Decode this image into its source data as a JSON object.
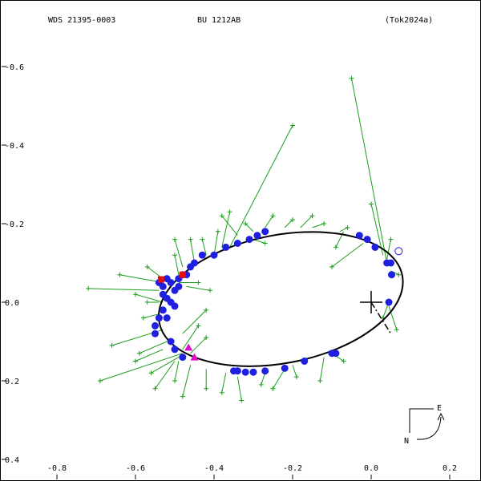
{
  "chart_data": {
    "type": "scatter",
    "header": {
      "left": "WDS 21395-0003",
      "center": "BU 1212AB",
      "right": "(Tok2024a)"
    },
    "xlim": [
      -0.9,
      0.28
    ],
    "ylim": [
      -0.4,
      0.7
    ],
    "x_ticks": [
      {
        "value": -0.8,
        "label": "-0.8"
      },
      {
        "value": -0.6,
        "label": "-0.6"
      },
      {
        "value": -0.4,
        "label": "-0.4"
      },
      {
        "value": -0.2,
        "label": "-0.2"
      },
      {
        "value": 0.0,
        "label": "0.0"
      },
      {
        "value": 0.2,
        "label": "0.2"
      }
    ],
    "y_ticks": [
      {
        "value": 0.6,
        "label": "-0.6"
      },
      {
        "value": 0.4,
        "label": "-0.4"
      },
      {
        "value": 0.2,
        "label": "-0.2"
      },
      {
        "value": 0.0,
        "label": "0.0"
      },
      {
        "value": -0.2,
        "label": "0.2"
      },
      {
        "value": -0.4,
        "label": "0.4"
      }
    ],
    "orbit": {
      "center": [
        -0.23,
        0.008
      ],
      "semi_axes": [
        0.315,
        0.163
      ],
      "rotation_deg": 11,
      "color": "#000000"
    },
    "primary": [
      0.0,
      0.0
    ],
    "periastron_line": [
      [
        0.0,
        0.0
      ],
      [
        0.05,
        -0.08
      ]
    ],
    "compass": {
      "east_label": "E",
      "north_label": "N"
    },
    "series": [
      {
        "marker": "filled-circle",
        "color": "#1f1fe0",
        "points": [
          [
            -0.54,
            0.05
          ],
          [
            -0.53,
            0.04
          ],
          [
            -0.53,
            0.02
          ],
          [
            -0.52,
            0.06
          ],
          [
            -0.52,
            0.01
          ],
          [
            -0.51,
            0.05
          ],
          [
            -0.51,
            0.0
          ],
          [
            -0.5,
            0.03
          ],
          [
            -0.5,
            -0.01
          ],
          [
            -0.49,
            0.06
          ],
          [
            -0.49,
            0.04
          ],
          [
            -0.48,
            0.07
          ],
          [
            -0.47,
            0.07
          ],
          [
            -0.53,
            -0.02
          ],
          [
            -0.52,
            -0.04
          ],
          [
            -0.54,
            -0.04
          ],
          [
            -0.55,
            -0.06
          ],
          [
            -0.55,
            -0.08
          ],
          [
            -0.51,
            -0.1
          ],
          [
            -0.5,
            -0.12
          ],
          [
            -0.48,
            -0.14
          ],
          [
            -0.46,
            0.09
          ],
          [
            -0.45,
            0.1
          ],
          [
            -0.43,
            0.12
          ],
          [
            -0.4,
            0.12
          ],
          [
            -0.37,
            0.14
          ],
          [
            -0.34,
            0.15
          ],
          [
            -0.31,
            0.16
          ],
          [
            -0.29,
            0.17
          ],
          [
            -0.27,
            0.18
          ],
          [
            -0.03,
            0.17
          ],
          [
            -0.01,
            0.16
          ],
          [
            0.01,
            0.14
          ],
          [
            0.04,
            0.1
          ],
          [
            0.05,
            0.1
          ],
          [
            0.052,
            0.07
          ],
          [
            0.045,
            0.0
          ],
          [
            -0.09,
            -0.13
          ],
          [
            -0.1,
            -0.13
          ],
          [
            -0.17,
            -0.15
          ],
          [
            -0.22,
            -0.168
          ],
          [
            -0.27,
            -0.175
          ],
          [
            -0.3,
            -0.178
          ],
          [
            -0.32,
            -0.178
          ],
          [
            -0.34,
            -0.175
          ],
          [
            -0.35,
            -0.175
          ]
        ]
      },
      {
        "marker": "open-circle",
        "color": "#1f1fe0",
        "points": [
          [
            0.07,
            0.13
          ]
        ]
      },
      {
        "marker": "square",
        "color": "#e01010",
        "points": [
          [
            -0.535,
            0.058
          ],
          [
            -0.48,
            0.07
          ]
        ]
      },
      {
        "marker": "triangle",
        "color": "#e010c8",
        "points": [
          [
            -0.465,
            -0.115
          ],
          [
            -0.45,
            -0.14
          ]
        ]
      },
      {
        "marker": "plus-with-line",
        "color": "#1a9e1a",
        "points": [
          [
            -0.72,
            0.035,
            -0.54,
            0.03
          ],
          [
            -0.64,
            0.07,
            -0.53,
            0.05
          ],
          [
            -0.6,
            0.02,
            -0.53,
            0.0
          ],
          [
            -0.66,
            -0.11,
            -0.53,
            -0.07
          ],
          [
            -0.69,
            -0.2,
            -0.48,
            -0.13
          ],
          [
            -0.59,
            -0.13,
            -0.52,
            -0.1
          ],
          [
            -0.56,
            -0.18,
            -0.49,
            -0.14
          ],
          [
            -0.48,
            -0.24,
            -0.46,
            -0.16
          ],
          [
            -0.42,
            -0.22,
            -0.42,
            -0.17
          ],
          [
            -0.38,
            -0.23,
            -0.37,
            -0.18
          ],
          [
            -0.33,
            -0.25,
            -0.34,
            -0.19
          ],
          [
            -0.44,
            -0.06,
            -0.48,
            -0.12
          ],
          [
            -0.42,
            -0.02,
            -0.48,
            -0.08
          ],
          [
            -0.2,
            0.45,
            -0.36,
            0.14
          ],
          [
            -0.38,
            0.22,
            -0.34,
            0.17
          ],
          [
            -0.32,
            0.2,
            -0.3,
            0.18
          ],
          [
            -0.25,
            0.22,
            -0.27,
            0.19
          ],
          [
            -0.2,
            0.21,
            -0.22,
            0.19
          ],
          [
            -0.12,
            0.2,
            -0.15,
            0.19
          ],
          [
            -0.06,
            0.19,
            -0.08,
            0.18
          ],
          [
            -0.05,
            0.57,
            0.04,
            0.1
          ],
          [
            0.0,
            0.25,
            0.03,
            0.12
          ],
          [
            -0.1,
            0.09,
            -0.02,
            0.15
          ],
          [
            0.03,
            -0.04,
            0.045,
            0.0
          ],
          [
            0.065,
            -0.07,
            0.045,
            -0.01
          ],
          [
            -0.13,
            -0.2,
            -0.12,
            -0.14
          ],
          [
            -0.25,
            -0.22,
            -0.22,
            -0.17
          ],
          [
            -0.28,
            -0.21,
            -0.27,
            -0.18
          ],
          [
            -0.43,
            0.16,
            -0.42,
            0.12
          ],
          [
            -0.46,
            0.16,
            -0.45,
            0.1
          ],
          [
            -0.5,
            0.12,
            -0.49,
            0.07
          ],
          [
            -0.5,
            0.16,
            -0.48,
            0.09
          ],
          [
            -0.57,
            0.09,
            -0.53,
            0.06
          ],
          [
            -0.58,
            -0.04,
            -0.54,
            -0.03
          ],
          [
            -0.57,
            0.0,
            -0.54,
            0.0
          ],
          [
            -0.44,
            0.05,
            -0.49,
            0.05
          ],
          [
            -0.41,
            0.03,
            -0.47,
            0.04
          ],
          [
            -0.6,
            -0.15,
            -0.53,
            -0.12
          ],
          [
            -0.55,
            -0.22,
            -0.5,
            -0.15
          ],
          [
            -0.5,
            -0.2,
            -0.49,
            -0.15
          ],
          [
            -0.42,
            -0.09,
            -0.46,
            -0.13
          ],
          [
            -0.36,
            0.23,
            -0.38,
            0.14
          ],
          [
            -0.39,
            0.18,
            -0.4,
            0.12
          ],
          [
            -0.27,
            0.15,
            -0.3,
            0.16
          ],
          [
            -0.15,
            0.22,
            -0.18,
            0.19
          ],
          [
            -0.09,
            0.14,
            -0.07,
            0.18
          ],
          [
            0.05,
            0.16,
            0.04,
            0.11
          ],
          [
            0.07,
            0.07,
            0.05,
            0.08
          ],
          [
            -0.07,
            -0.15,
            -0.1,
            -0.13
          ],
          [
            -0.19,
            -0.19,
            -0.2,
            -0.16
          ]
        ]
      }
    ]
  }
}
